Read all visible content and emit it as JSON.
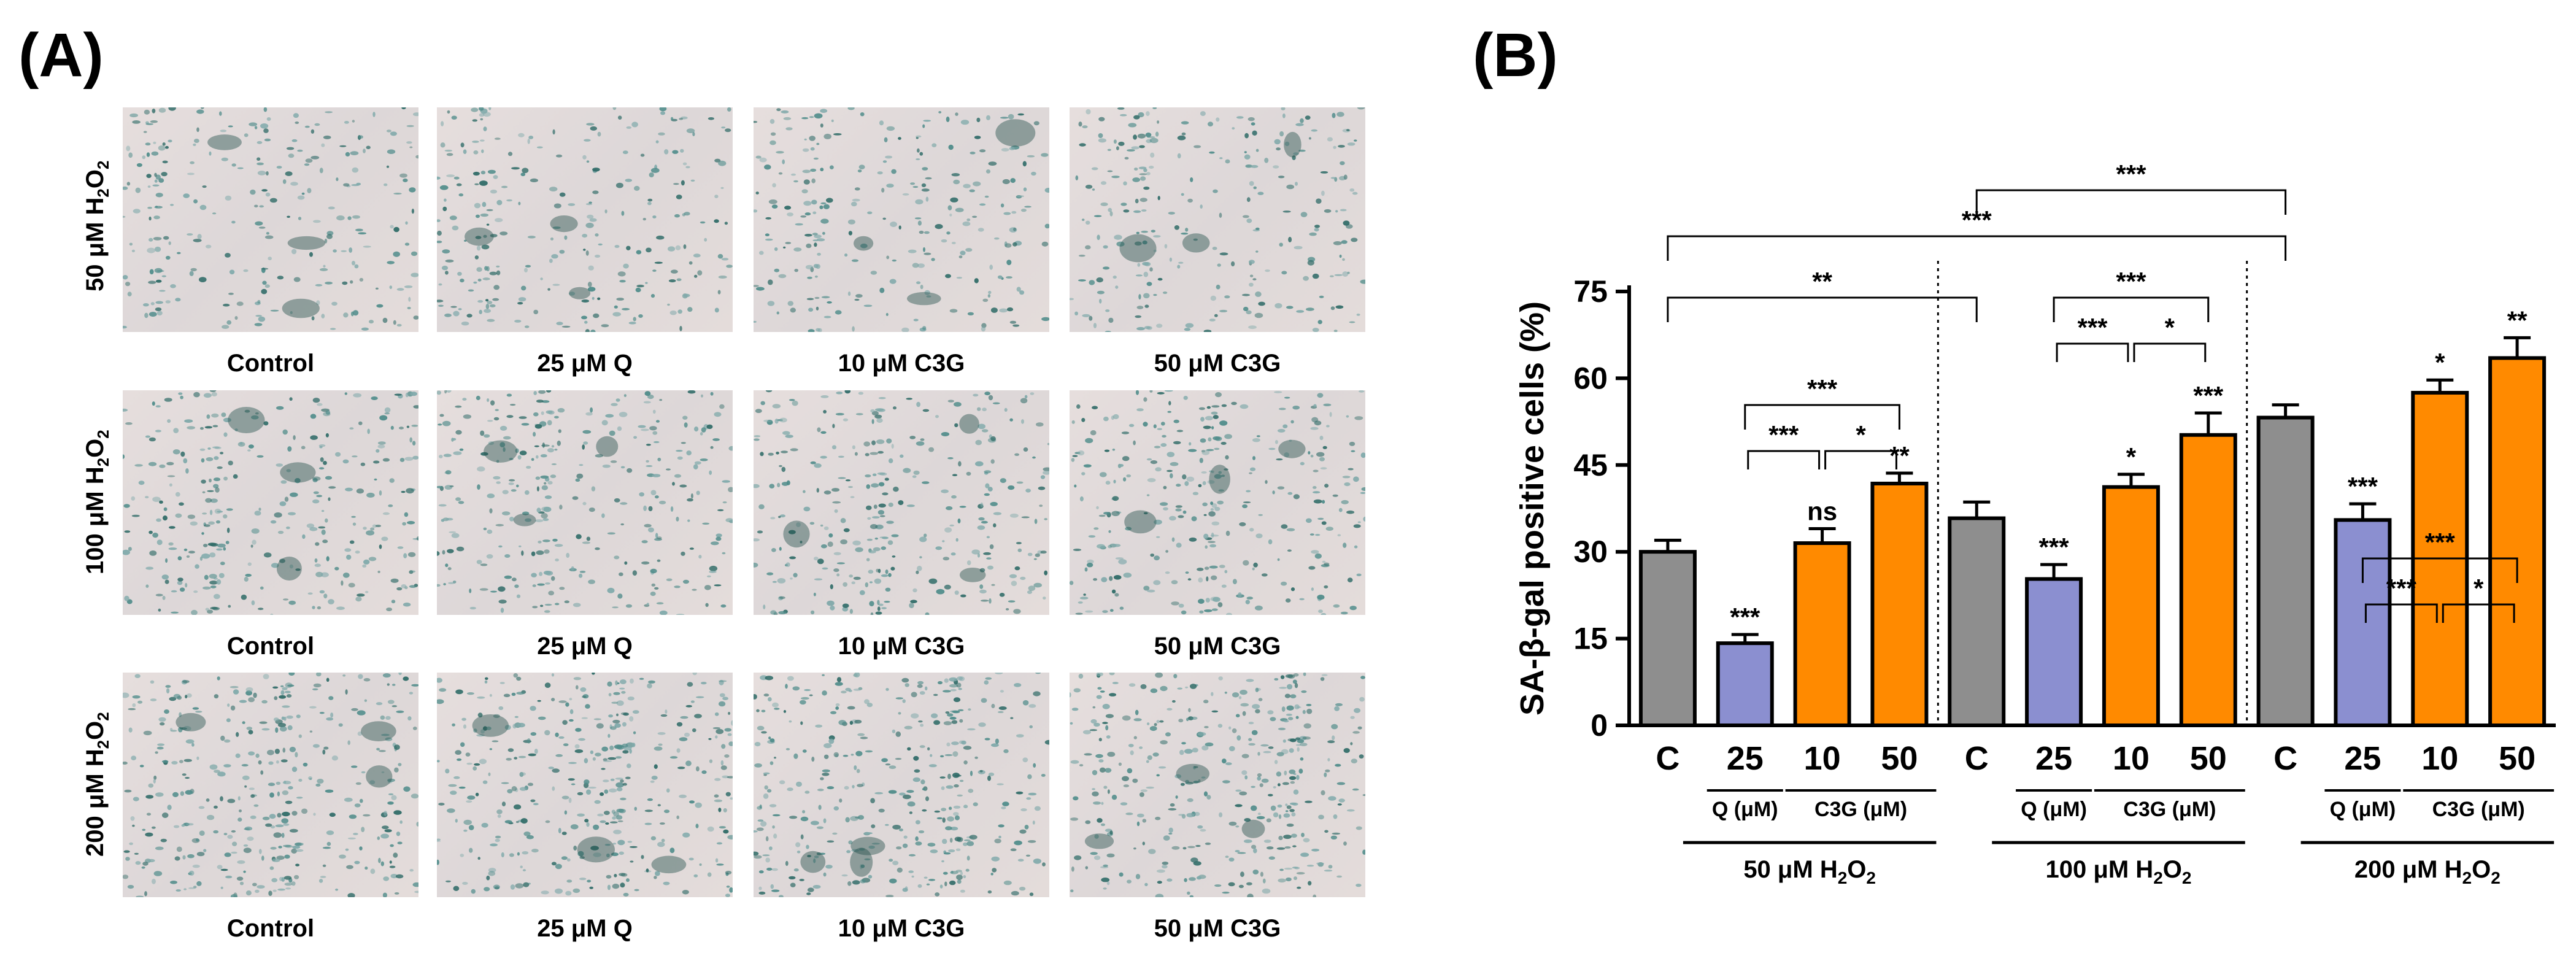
{
  "panel_a": {
    "label": "(A)",
    "rows": [
      {
        "label": "50 μM H",
        "sub": "2",
        "label_tail": "O",
        "sub2": "2",
        "captions": [
          "Control",
          "25 μM Q",
          "10 μM C3G",
          "50 μM C3G"
        ]
      },
      {
        "label": "100 μM H",
        "sub": "2",
        "label_tail": "O",
        "sub2": "2",
        "captions": [
          "Control",
          "25 μM Q",
          "10 μM C3G",
          "50 μM C3G"
        ]
      },
      {
        "label": "200 μM H",
        "sub": "2",
        "label_tail": "O",
        "sub2": "2",
        "captions": [
          "Control",
          "25 μM Q",
          "10 μM C3G",
          "50 μM C3G"
        ]
      }
    ]
  },
  "chart_data": {
    "type": "bar",
    "panel_label": "(B)",
    "ylabel": "SA-β-gal positive cells (%)",
    "ylim": [
      0,
      75
    ],
    "yticks": [
      0,
      15,
      30,
      45,
      60,
      75
    ],
    "categories": [
      "C",
      "25",
      "10",
      "50",
      "C",
      "25",
      "10",
      "50",
      "C",
      "25",
      "10",
      "50"
    ],
    "values": [
      30,
      14.2,
      31.5,
      41.8,
      35.8,
      25.3,
      41.2,
      50.2,
      53.2,
      35.5,
      57.5,
      63.5
    ],
    "errors": [
      2.0,
      1.5,
      2.5,
      1.8,
      2.8,
      2.5,
      2.2,
      3.8,
      2.2,
      2.8,
      2.2,
      3.5
    ],
    "colors": [
      "#8e8e8e",
      "#8b8fd0",
      "#ff8a00",
      "#ff8a00",
      "#8e8e8e",
      "#8b8fd0",
      "#ff8a00",
      "#ff8a00",
      "#8e8e8e",
      "#8b8fd0",
      "#ff8a00",
      "#ff8a00"
    ],
    "bar_annotations": [
      "",
      "***",
      "ns",
      "**",
      "",
      "***",
      "*",
      "***",
      "",
      "***",
      "*",
      "**"
    ],
    "sub_group_labels": [
      "Q (μM)",
      "C3G (μM)",
      "Q (μM)",
      "C3G (μM)",
      "Q (μM)",
      "C3G (μM)"
    ],
    "group_labels": [
      {
        "text": "50 μM H",
        "sub": "2",
        "tail": "O",
        "sub2": "2"
      },
      {
        "text": "100 μM H",
        "sub": "2",
        "tail": "O",
        "sub2": "2"
      },
      {
        "text": "200 μM H",
        "sub": "2",
        "tail": "O",
        "sub2": "2"
      }
    ],
    "comparisons": [
      {
        "from": 1,
        "to": 2,
        "label": "***"
      },
      {
        "from": 2,
        "to": 3,
        "label": "*"
      },
      {
        "from": 1,
        "to": 3,
        "label": "***"
      },
      {
        "from": 5,
        "to": 6,
        "label": "***"
      },
      {
        "from": 6,
        "to": 7,
        "label": "*"
      },
      {
        "from": 5,
        "to": 7,
        "label": "***"
      },
      {
        "from": 9,
        "to": 10,
        "label": "***"
      },
      {
        "from": 10,
        "to": 11,
        "label": "*"
      },
      {
        "from": 9,
        "to": 11,
        "label": "***"
      },
      {
        "from": 0,
        "to": 4,
        "label": "**"
      },
      {
        "from": 0,
        "to": 8,
        "label": "***"
      },
      {
        "from": 4,
        "to": 8,
        "label": "***"
      }
    ]
  }
}
